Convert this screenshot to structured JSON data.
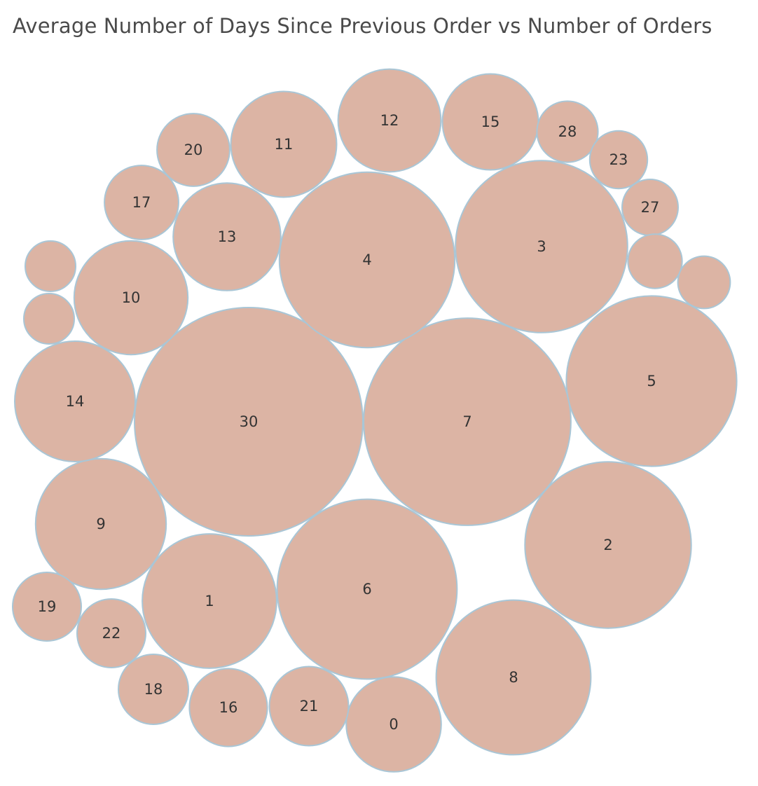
{
  "chart_data": {
    "type": "bubble",
    "title": "Average Number of Days Since Previous Order vs Number of Orders",
    "colors": {
      "bubble_fill": "#dcb4a4",
      "bubble_stroke": "#a9c6d6"
    },
    "bubbles": [
      {
        "label": "30",
        "size": 26600
      },
      {
        "label": "7",
        "size": 21900
      },
      {
        "label": "4",
        "size": 15700
      },
      {
        "label": "3",
        "size": 15100
      },
      {
        "label": "6",
        "size": 16500
      },
      {
        "label": "5",
        "size": 14800
      },
      {
        "label": "2",
        "size": 14100
      },
      {
        "label": "8",
        "size": 12200
      },
      {
        "label": "9",
        "size": 8700
      },
      {
        "label": "1",
        "size": 9200
      },
      {
        "label": "14",
        "size": 7400
      },
      {
        "label": "10",
        "size": 6600
      },
      {
        "label": "13",
        "size": 5900
      },
      {
        "label": "11",
        "size": 5700
      },
      {
        "label": "12",
        "size": 5400
      },
      {
        "label": "15",
        "size": 4700
      },
      {
        "label": "0",
        "size": 4600
      },
      {
        "label": "21",
        "size": 3200
      },
      {
        "label": "16",
        "size": 3100
      },
      {
        "label": "17",
        "size": 2800
      },
      {
        "label": "20",
        "size": 2700
      },
      {
        "label": "18",
        "size": 2500
      },
      {
        "label": "22",
        "size": 2400
      },
      {
        "label": "19",
        "size": 2400
      },
      {
        "label": "28",
        "size": 1900
      },
      {
        "label": "23",
        "size": 1700
      },
      {
        "label": "27",
        "size": 1600
      },
      {
        "label": "",
        "size": 1500
      },
      {
        "label": "",
        "size": 1400
      },
      {
        "label": "",
        "size": 1300
      },
      {
        "label": "",
        "size": 1300
      }
    ]
  }
}
